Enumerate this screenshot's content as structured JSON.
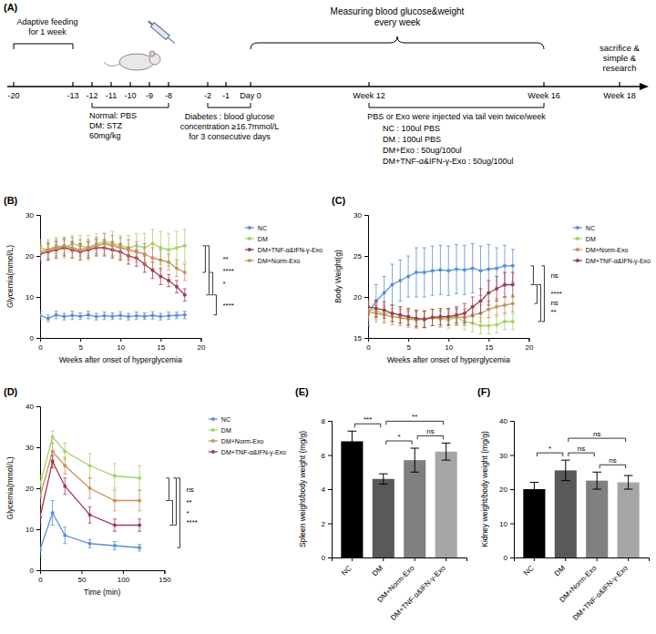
{
  "timeline": {
    "panel": "(A)",
    "ticks": [
      "-20",
      "-13",
      "-12",
      "-11",
      "-10",
      "-9",
      "-8",
      "-2",
      "-1",
      "Day 0",
      "Week 12",
      "Week 16",
      "Week 18"
    ],
    "adaptive": [
      "Adaptive feeding",
      "for 1 week"
    ],
    "induction": [
      "Normal: PBS",
      "DM: STZ",
      "60mg/kg"
    ],
    "criterion": [
      "Diabetes : blood glucose",
      "concentration ≥16.7mmol/L",
      "for 3 consecutive days"
    ],
    "monitoring": [
      "Measuring blood glucose&weight",
      "every week"
    ],
    "end": [
      "sacrifice &",
      "simple &",
      "research"
    ],
    "treatment": [
      "PBS or Exo were injected via tail vein twice/week",
      "NC : 100ul PBS",
      "DM : 100ul PBS",
      "DM+Exo : 50ug/100ul",
      "DM+TNF-α&IFN-γ-Exo : 50ug/100ul"
    ]
  },
  "chart_data": [
    {
      "panel": "(B)",
      "type": "line",
      "x_label": "Weeks after onset of hyperglycemia",
      "y_label": "Glycemia(mmol/L)",
      "x": [
        0,
        1,
        2,
        3,
        4,
        5,
        6,
        7,
        8,
        9,
        10,
        11,
        12,
        13,
        14,
        15,
        16,
        17,
        18
      ],
      "xlim": [
        0,
        20
      ],
      "xticks": [
        0,
        5,
        10,
        15,
        20
      ],
      "ylim": [
        0,
        30
      ],
      "yticks": [
        0,
        10,
        20,
        30
      ],
      "marker": "circle",
      "legend": "right",
      "series": [
        {
          "name": "NC",
          "color": "#5b8fd9",
          "values": [
            5.5,
            4.8,
            5.6,
            5.2,
            5.5,
            5.3,
            5.6,
            5.2,
            5.4,
            5.3,
            5.5,
            5.2,
            5.4,
            5.3,
            5.5,
            5.2,
            5.4,
            5.5,
            5.6
          ],
          "errors": [
            1,
            0.8,
            0.9,
            0.8,
            1,
            0.8,
            0.9,
            0.8,
            0.9,
            0.8,
            0.9,
            0.8,
            0.9,
            0.8,
            0.9,
            0.8,
            0.9,
            0.8,
            0.9
          ]
        },
        {
          "name": "DM",
          "color": "#a6d36a",
          "values": [
            22,
            21.5,
            22.5,
            22,
            23,
            22.5,
            22,
            23,
            23.5,
            23,
            22.5,
            22,
            22.5,
            22,
            23,
            22,
            21.5,
            22,
            22.5
          ],
          "errors": [
            2,
            2.5,
            2,
            2.5,
            2,
            2.5,
            3,
            2.5,
            2,
            3,
            2.5,
            3,
            3,
            3.5,
            3.5,
            4,
            4,
            4,
            4
          ]
        },
        {
          "name": "DM+TNF-α&IFN-γ-Exo",
          "color": "#a23a50",
          "values": [
            20.5,
            21,
            21.5,
            22,
            21.5,
            21,
            21.5,
            22,
            22,
            21.5,
            21,
            20,
            19.5,
            18,
            16.5,
            15,
            14,
            12.5,
            10.5
          ],
          "errors": [
            2,
            2,
            2,
            2,
            2,
            2,
            2,
            2,
            2,
            2,
            2,
            2,
            2,
            2,
            2,
            2,
            1.5,
            1.5,
            1.5
          ]
        },
        {
          "name": "DM+Norm-Exo",
          "color": "#c8915a",
          "values": [
            21,
            21.5,
            22,
            22.5,
            22,
            21.5,
            22,
            22.5,
            23,
            22.5,
            22,
            21.5,
            21,
            20.5,
            19.5,
            19,
            18.5,
            17,
            16
          ],
          "errors": [
            2,
            2,
            2,
            2,
            2.5,
            2.5,
            2,
            2,
            2.5,
            2.5,
            2.5,
            2.5,
            2.5,
            2.5,
            2.5,
            2.5,
            2,
            2,
            2
          ]
        }
      ],
      "annotations": [
        {
          "label": "**",
          "between": [
            1,
            3
          ]
        },
        {
          "label": "****",
          "between": [
            1,
            2
          ]
        },
        {
          "label": "*",
          "between": [
            3,
            2
          ]
        },
        {
          "label": "****",
          "between": [
            0,
            2
          ]
        }
      ]
    },
    {
      "panel": "(C)",
      "type": "line",
      "x_label": "Weeks after onset of hyperglycemia",
      "y_label": "Body Weight(g)",
      "x": [
        0,
        1,
        2,
        3,
        4,
        5,
        6,
        7,
        8,
        9,
        10,
        11,
        12,
        13,
        14,
        15,
        16,
        17,
        18
      ],
      "xlim": [
        0,
        20
      ],
      "xticks": [
        0,
        5,
        10,
        15,
        20
      ],
      "ylim": [
        15,
        30
      ],
      "yticks": [
        15,
        20,
        25,
        30
      ],
      "marker": "circle",
      "legend": "right",
      "series": [
        {
          "name": "NC",
          "color": "#5b8fd9",
          "values": [
            18,
            19.5,
            20.5,
            21.5,
            22,
            22.5,
            23,
            23,
            23.2,
            23.3,
            23.2,
            23.4,
            23.3,
            23.5,
            23.2,
            23.4,
            23.5,
            23.8,
            23.8
          ],
          "errors": [
            1.5,
            2,
            2,
            2.5,
            2.5,
            2.5,
            3,
            3,
            3,
            3,
            3,
            3,
            3,
            3,
            3,
            3,
            2.5,
            2.5,
            2
          ]
        },
        {
          "name": "DM",
          "color": "#a6d36a",
          "values": [
            18.5,
            18.3,
            18,
            18,
            17.8,
            17.5,
            17.3,
            17.2,
            17.5,
            17.3,
            17.2,
            17.5,
            17,
            16.8,
            16.5,
            16.5,
            16.6,
            17,
            17
          ],
          "errors": [
            1,
            1,
            1,
            1,
            1,
            1,
            1,
            1,
            1,
            1,
            1,
            1,
            1,
            1,
            1,
            1,
            1,
            1,
            1
          ]
        },
        {
          "name": "DM+Norm-Exo",
          "color": "#c8915a",
          "values": [
            18.2,
            18,
            17.8,
            17.6,
            17.5,
            17.3,
            17.2,
            17.3,
            17.5,
            17.4,
            17.5,
            17.6,
            17.5,
            17.8,
            18,
            18.5,
            18.8,
            19,
            19.2
          ],
          "errors": [
            1,
            1,
            1,
            1,
            1,
            1,
            1,
            1,
            1,
            1,
            1,
            1,
            1,
            1,
            1,
            1,
            1,
            1,
            1
          ]
        },
        {
          "name": "DM+TNF-α&IFN-γ-Exo",
          "color": "#a23a50",
          "values": [
            18.8,
            18.6,
            18.4,
            18,
            17.8,
            17.6,
            17.4,
            17.3,
            17.5,
            17.6,
            17.6,
            17.8,
            18,
            18.8,
            19.5,
            20.5,
            21,
            21.5,
            21.5
          ],
          "errors": [
            1,
            1,
            1,
            1,
            1,
            1,
            1,
            1,
            1,
            1,
            1,
            1,
            1.2,
            1.2,
            1.5,
            1.5,
            1.5,
            1.5,
            1.5
          ]
        }
      ],
      "annotations": [
        {
          "label": "ns",
          "between": [
            0,
            3
          ]
        },
        {
          "label": "ns",
          "between": [
            2,
            3
          ]
        },
        {
          "label": "**",
          "between": [
            1,
            3
          ]
        },
        {
          "label": "****",
          "between": [
            0,
            1
          ]
        }
      ]
    },
    {
      "panel": "(D)",
      "type": "line",
      "x_label": "Time (min)",
      "y_label": "Glycemia(mmol/L)",
      "x": [
        0,
        15,
        30,
        60,
        90,
        120
      ],
      "xlim": [
        0,
        150
      ],
      "xticks": [
        0,
        50,
        100,
        150
      ],
      "ylim": [
        0,
        40
      ],
      "yticks": [
        0,
        10,
        20,
        30,
        40
      ],
      "marker": "circle",
      "legend": "right",
      "series": [
        {
          "name": "NC",
          "color": "#5b8fd9",
          "values": [
            5,
            14,
            8.5,
            6.5,
            6,
            5.5
          ],
          "errors": [
            1.5,
            3,
            2,
            1,
            1,
            0.8
          ]
        },
        {
          "name": "DM",
          "color": "#a6d36a",
          "values": [
            21,
            32.5,
            29,
            25.5,
            23,
            22.5
          ],
          "errors": [
            2,
            1.5,
            2,
            3,
            3,
            3
          ]
        },
        {
          "name": "DM+Norm-Exo",
          "color": "#c8915a",
          "values": [
            18,
            29,
            25.5,
            20,
            17,
            17
          ],
          "errors": [
            2,
            2,
            2,
            2.5,
            2.5,
            2.5
          ]
        },
        {
          "name": "DM+TNF-α&IFN-γ-Exo",
          "color": "#a23a50",
          "values": [
            13,
            26.5,
            20.5,
            13.5,
            11,
            11
          ],
          "errors": [
            2,
            1.5,
            2,
            2,
            1.5,
            1.5
          ]
        }
      ],
      "annotations": [
        {
          "label": "ns",
          "between": [
            1,
            2
          ]
        },
        {
          "label": "*",
          "between": [
            2,
            3
          ]
        },
        {
          "label": "**",
          "between": [
            1,
            3
          ]
        },
        {
          "label": "****",
          "between": [
            0,
            1
          ]
        }
      ]
    },
    {
      "panel": "(E)",
      "type": "bar",
      "y_label": "Spleen weight/body weight (mg/g)",
      "categories": [
        "NC",
        "DM",
        "DM+Norm-Exo",
        "DM+TNF-α&IFN-γ-Exo"
      ],
      "values": [
        6.8,
        4.6,
        5.7,
        6.2
      ],
      "errors": [
        0.6,
        0.3,
        0.7,
        0.5
      ],
      "colors": [
        "#000000",
        "#595959",
        "#808080",
        "#a6a6a6"
      ],
      "ylim": [
        0,
        8
      ],
      "yticks": [
        0,
        2,
        4,
        6,
        8
      ],
      "annotations": [
        {
          "label": "***",
          "between": [
            0,
            1
          ]
        },
        {
          "label": "*",
          "between": [
            1,
            2
          ]
        },
        {
          "label": "ns",
          "between": [
            2,
            3
          ]
        },
        {
          "label": "**",
          "between": [
            1,
            3
          ]
        }
      ]
    },
    {
      "panel": "(F)",
      "type": "bar",
      "y_label": "Kidney weight/body weight (mg/g)",
      "categories": [
        "NC",
        "DM",
        "DM+Norm-Exo",
        "DM+TNF-α&IFN-γ-Exo"
      ],
      "values": [
        20,
        25.5,
        22.5,
        22
      ],
      "errors": [
        2,
        3,
        2.5,
        2
      ],
      "colors": [
        "#000000",
        "#595959",
        "#808080",
        "#a6a6a6"
      ],
      "ylim": [
        0,
        40
      ],
      "yticks": [
        0,
        10,
        20,
        30,
        40
      ],
      "annotations": [
        {
          "label": "*",
          "between": [
            0,
            1
          ]
        },
        {
          "label": "ns",
          "between": [
            1,
            2
          ]
        },
        {
          "label": "ns",
          "between": [
            2,
            3
          ]
        },
        {
          "label": "ns",
          "between": [
            1,
            3
          ]
        }
      ]
    }
  ]
}
